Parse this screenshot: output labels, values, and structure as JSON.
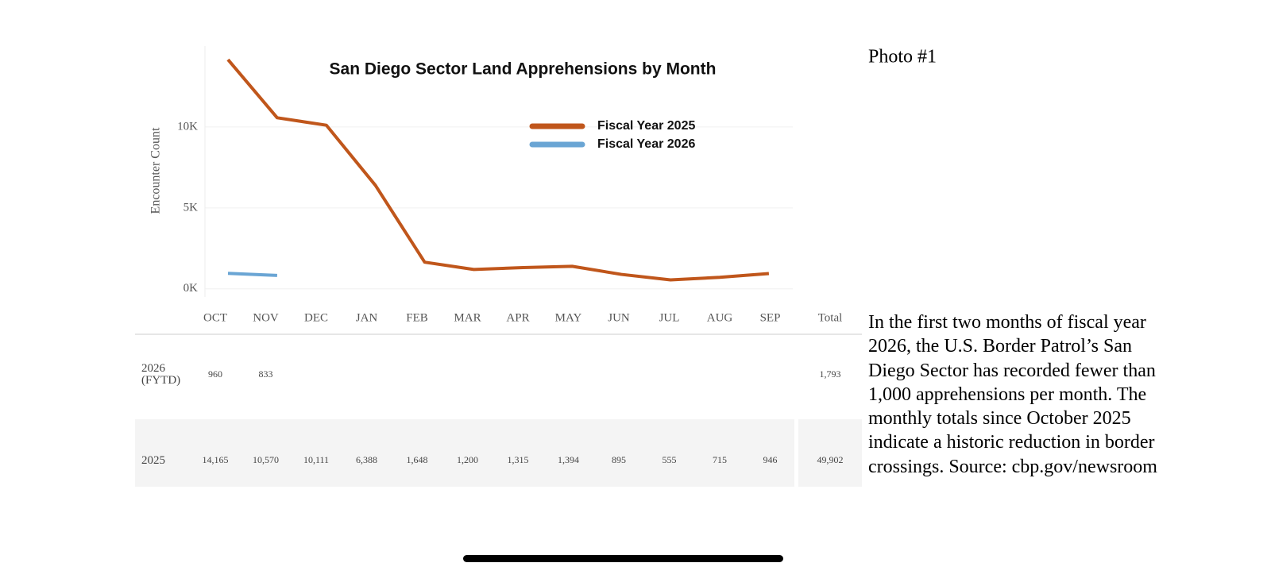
{
  "chart_data": {
    "type": "line",
    "title": "San Diego Sector Land Apprehensions by Month",
    "y_label": "Encounter Count",
    "categories": [
      "OCT",
      "NOV",
      "DEC",
      "JAN",
      "FEB",
      "MAR",
      "APR",
      "MAY",
      "JUN",
      "JUL",
      "AUG",
      "SEP"
    ],
    "series": [
      {
        "name": "Fiscal Year 2025",
        "color": "#c0561b",
        "values": [
          14165,
          10570,
          10111,
          6388,
          1648,
          1200,
          1315,
          1394,
          895,
          555,
          715,
          946
        ]
      },
      {
        "name": "Fiscal Year 2026",
        "color": "#6aa5d4",
        "values": [
          960,
          833,
          null,
          null,
          null,
          null,
          null,
          null,
          null,
          null,
          null,
          null
        ]
      }
    ],
    "ylim": [
      -500,
      15000
    ],
    "yticks": [
      {
        "value": 0,
        "label": "0K"
      },
      {
        "value": 5000,
        "label": "5K"
      },
      {
        "value": 10000,
        "label": "10K"
      }
    ],
    "grid": true,
    "legend": "upper right"
  },
  "table": {
    "total_header": "Total",
    "rows": [
      {
        "label": "2026 (FYTD)",
        "cells": [
          "960",
          "833"
        ],
        "total": "1,793"
      },
      {
        "label": "2025",
        "cells": [
          "14,165",
          "10,570",
          "10,111",
          "6,388",
          "1,648",
          "1,200",
          "1,315",
          "1,394",
          "895",
          "555",
          "715",
          "946"
        ],
        "total": "49,902"
      }
    ]
  },
  "caption": {
    "title": "Photo #1",
    "text": "In the first two months of fiscal year 2026, the U.S. Border Patrol’s San Diego Sector has recorded fewer than 1,000 apprehensions per month. The monthly totals since October 2025 indicate a historic reduction in border crossings. Source: cbp.gov/newsroom"
  }
}
